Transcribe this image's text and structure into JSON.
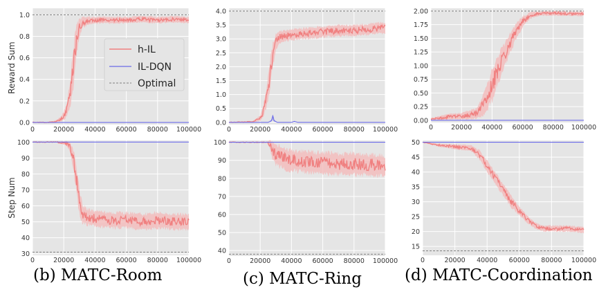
{
  "legend": {
    "entries": [
      {
        "label": "h-IL",
        "color": "#f08080",
        "style": "solid"
      },
      {
        "label": "IL-DQN",
        "color": "#6a6ae8",
        "style": "solid"
      },
      {
        "label": "Optimal",
        "color": "#808080",
        "style": "dashed"
      }
    ],
    "placement": "inside top-right of MATC-Room reward panel"
  },
  "captions": [
    "(b) MATC-Room",
    "(c) MATC-Ring",
    "(d) MATC-Coordination"
  ],
  "row_labels": [
    "Reward Sum",
    "Step Num"
  ],
  "colors": {
    "panel_bg": "#e5e5e5",
    "grid": "#ffffff",
    "hil": "#f08080",
    "hil_band": "#f4b7b7",
    "dqn": "#6a6ae8",
    "optimal": "#808080"
  },
  "chart_data": [
    {
      "type": "line",
      "environment": "MATC-Room",
      "metric": "Reward Sum",
      "ylabel": "Reward Sum",
      "xlabel": "",
      "xlim": [
        0,
        100000
      ],
      "ylim": [
        -0.02,
        1.06
      ],
      "grid": true,
      "xticks": [
        0,
        20000,
        40000,
        60000,
        80000,
        100000
      ],
      "xtick_labels": [
        "0",
        "20000",
        "40000",
        "60000",
        "80000",
        "100000"
      ],
      "yticks": [
        0,
        0.2,
        0.4,
        0.6,
        0.8,
        1.0
      ],
      "ytick_labels": [
        "0.0",
        "0.2",
        "0.4",
        "0.6",
        "0.8",
        "1.0"
      ],
      "optimal": 1.0,
      "series": [
        {
          "name": "h-IL",
          "x": [
            0,
            10000,
            15000,
            18000,
            20000,
            22000,
            24000,
            26000,
            28000,
            30000,
            32000,
            35000,
            40000,
            50000,
            60000,
            70000,
            80000,
            90000,
            100000
          ],
          "y": [
            0,
            0,
            0.01,
            0.03,
            0.06,
            0.12,
            0.25,
            0.5,
            0.75,
            0.88,
            0.93,
            0.94,
            0.95,
            0.95,
            0.95,
            0.96,
            0.95,
            0.96,
            0.95
          ],
          "band": [
            0,
            0,
            0.01,
            0.02,
            0.04,
            0.06,
            0.12,
            0.2,
            0.15,
            0.08,
            0.05,
            0.04,
            0.03,
            0.03,
            0.03,
            0.03,
            0.03,
            0.03,
            0.03
          ]
        },
        {
          "name": "IL-DQN",
          "x": [
            0,
            100000
          ],
          "y": [
            0,
            0
          ],
          "band": [
            0,
            0
          ]
        }
      ]
    },
    {
      "type": "line",
      "environment": "MATC-Ring",
      "metric": "Reward Sum",
      "ylabel": "",
      "xlabel": "",
      "xlim": [
        0,
        100000
      ],
      "ylim": [
        -0.08,
        4.1
      ],
      "grid": true,
      "xticks": [
        0,
        20000,
        40000,
        60000,
        80000,
        100000
      ],
      "xtick_labels": [
        "0",
        "20000",
        "40000",
        "60000",
        "80000",
        "100000"
      ],
      "yticks": [
        0,
        0.5,
        1.0,
        1.5,
        2.0,
        2.5,
        3.0,
        3.5,
        4.0
      ],
      "ytick_labels": [
        "0.0",
        "0.5",
        "1.0",
        "1.5",
        "2.0",
        "2.5",
        "3.0",
        "3.5",
        "4.0"
      ],
      "optimal": 4.0,
      "series": [
        {
          "name": "h-IL",
          "x": [
            0,
            15000,
            20000,
            22000,
            24000,
            26000,
            28000,
            30000,
            32000,
            35000,
            40000,
            50000,
            60000,
            70000,
            80000,
            90000,
            100000
          ],
          "y": [
            0,
            0.02,
            0.15,
            0.4,
            0.9,
            1.6,
            2.4,
            2.9,
            3.05,
            3.1,
            3.15,
            3.2,
            3.25,
            3.3,
            3.3,
            3.35,
            3.4
          ],
          "band": [
            0,
            0.02,
            0.1,
            0.2,
            0.35,
            0.5,
            0.45,
            0.3,
            0.25,
            0.2,
            0.2,
            0.2,
            0.2,
            0.2,
            0.2,
            0.2,
            0.2
          ]
        },
        {
          "name": "IL-DQN",
          "x": [
            0,
            25000,
            27000,
            28000,
            29000,
            31000,
            40000,
            42000,
            44000,
            100000
          ],
          "y": [
            0,
            0,
            0.05,
            0.2,
            0.05,
            0,
            0,
            0.03,
            0,
            0
          ],
          "band": [
            0,
            0,
            0.03,
            0.1,
            0.03,
            0,
            0,
            0.02,
            0,
            0
          ]
        }
      ]
    },
    {
      "type": "line",
      "environment": "MATC-Coordination",
      "metric": "Reward Sum",
      "ylabel": "",
      "xlabel": "",
      "xlim": [
        0,
        100000
      ],
      "ylim": [
        -0.04,
        2.05
      ],
      "grid": true,
      "xticks": [
        0,
        20000,
        40000,
        60000,
        80000,
        100000
      ],
      "xtick_labels": [
        "0",
        "20000",
        "40000",
        "60000",
        "80000",
        "100000"
      ],
      "yticks": [
        0,
        0.25,
        0.5,
        0.75,
        1.0,
        1.25,
        1.5,
        1.75,
        2.0
      ],
      "ytick_labels": [
        "0.00",
        "0.25",
        "0.50",
        "0.75",
        "1.00",
        "1.25",
        "1.50",
        "1.75",
        "2.00"
      ],
      "optimal": 2.0,
      "series": [
        {
          "name": "h-IL",
          "x": [
            0,
            10000,
            20000,
            30000,
            35000,
            40000,
            45000,
            50000,
            55000,
            60000,
            65000,
            70000,
            80000,
            90000,
            100000
          ],
          "y": [
            0.02,
            0.06,
            0.08,
            0.12,
            0.3,
            0.65,
            1.0,
            1.3,
            1.6,
            1.8,
            1.92,
            1.95,
            1.96,
            1.95,
            1.95
          ],
          "band": [
            0.02,
            0.05,
            0.06,
            0.1,
            0.2,
            0.3,
            0.25,
            0.2,
            0.15,
            0.1,
            0.06,
            0.04,
            0.04,
            0.04,
            0.04
          ]
        },
        {
          "name": "IL-DQN",
          "x": [
            0,
            100000
          ],
          "y": [
            0,
            0
          ],
          "band": [
            0,
            0
          ]
        }
      ]
    },
    {
      "type": "line",
      "environment": "MATC-Room",
      "metric": "Step Num",
      "ylabel": "Step Num",
      "xlabel": "",
      "xlim": [
        0,
        100000
      ],
      "ylim": [
        29,
        101
      ],
      "grid": true,
      "xticks": [
        0,
        20000,
        40000,
        60000,
        80000,
        100000
      ],
      "xtick_labels": [
        "0",
        "20000",
        "40000",
        "60000",
        "80000",
        "100000"
      ],
      "yticks": [
        30,
        40,
        50,
        60,
        70,
        80,
        90,
        100
      ],
      "ytick_labels": [
        "30",
        "40",
        "50",
        "60",
        "70",
        "80",
        "90",
        "100"
      ],
      "optimal": 31,
      "series": [
        {
          "name": "h-IL",
          "x": [
            0,
            15000,
            20000,
            22000,
            24000,
            26000,
            28000,
            30000,
            32000,
            35000,
            40000,
            50000,
            60000,
            70000,
            80000,
            90000,
            100000
          ],
          "y": [
            100,
            100,
            99.5,
            99,
            97,
            90,
            78,
            62,
            55,
            53,
            52,
            51,
            51,
            50,
            51,
            50,
            50
          ],
          "band": [
            0,
            0.3,
            1,
            1.5,
            3,
            6,
            9,
            8,
            6,
            5,
            5,
            5,
            5,
            5,
            5,
            5,
            5
          ]
        },
        {
          "name": "IL-DQN",
          "x": [
            0,
            100000
          ],
          "y": [
            100,
            100
          ],
          "band": [
            0,
            0
          ]
        }
      ]
    },
    {
      "type": "line",
      "environment": "MATC-Ring",
      "metric": "Step Num",
      "ylabel": "",
      "xlabel": "",
      "xlim": [
        0,
        100000
      ],
      "ylim": [
        37,
        101
      ],
      "grid": true,
      "xticks": [
        0,
        20000,
        40000,
        60000,
        80000,
        100000
      ],
      "xtick_labels": [
        "0",
        "20000",
        "40000",
        "60000",
        "80000",
        "100000"
      ],
      "yticks": [
        40,
        50,
        60,
        70,
        80,
        90,
        100
      ],
      "ytick_labels": [
        "40",
        "50",
        "60",
        "70",
        "80",
        "90",
        "100"
      ],
      "optimal": 38,
      "series": [
        {
          "name": "h-IL",
          "x": [
            0,
            24000,
            26000,
            28000,
            30000,
            35000,
            40000,
            50000,
            60000,
            70000,
            80000,
            90000,
            100000
          ],
          "y": [
            100,
            100,
            99,
            95,
            93,
            91,
            90,
            89,
            88.5,
            88,
            88,
            87.5,
            87
          ],
          "band": [
            0,
            0.2,
            2,
            5,
            6,
            6,
            6,
            6,
            6,
            6,
            6,
            6,
            6
          ]
        },
        {
          "name": "IL-DQN",
          "x": [
            0,
            100000
          ],
          "y": [
            100,
            100
          ],
          "band": [
            0,
            0
          ]
        }
      ]
    },
    {
      "type": "line",
      "environment": "MATC-Coordination",
      "metric": "Step Num",
      "ylabel": "",
      "xlabel": "",
      "xlim": [
        0,
        100000
      ],
      "ylim": [
        12,
        50.6
      ],
      "grid": true,
      "xticks": [
        0,
        20000,
        40000,
        60000,
        80000,
        100000
      ],
      "xtick_labels": [
        "0",
        "20000",
        "40000",
        "60000",
        "80000",
        "100000"
      ],
      "yticks": [
        15,
        20,
        25,
        30,
        35,
        40,
        45,
        50
      ],
      "ytick_labels": [
        "15",
        "20",
        "25",
        "30",
        "35",
        "40",
        "45",
        "50"
      ],
      "optimal": 13.5,
      "series": [
        {
          "name": "h-IL",
          "x": [
            0,
            10000,
            20000,
            30000,
            35000,
            40000,
            45000,
            50000,
            55000,
            60000,
            65000,
            70000,
            75000,
            80000,
            90000,
            100000
          ],
          "y": [
            50,
            49,
            48.5,
            48,
            46,
            42,
            38,
            34,
            30,
            27,
            24,
            22,
            21,
            21,
            21,
            20.5
          ],
          "band": [
            0,
            0.5,
            0.8,
            1,
            1.5,
            2,
            2,
            2,
            2,
            1.5,
            1.2,
            1,
            1,
            1,
            1,
            1
          ]
        },
        {
          "name": "IL-DQN",
          "x": [
            0,
            100000
          ],
          "y": [
            50,
            50
          ],
          "band": [
            0,
            0
          ]
        }
      ]
    }
  ]
}
